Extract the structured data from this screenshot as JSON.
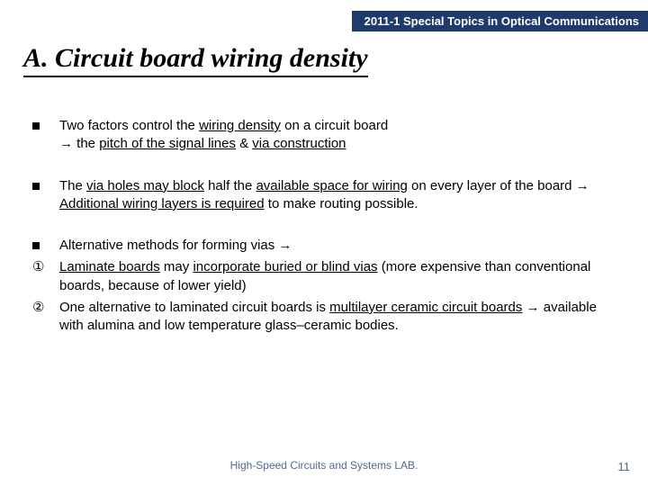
{
  "header": "2011-1 Special Topics in Optical Communications",
  "title": "A. Circuit board wiring density",
  "bullets": {
    "b1a": "Two factors control the ",
    "b1u1": "wiring density",
    "b1b": " on a circuit board",
    "b1c": "→ the ",
    "b1u2": "pitch of the signal lines",
    "b1d": " & ",
    "b1u3": "via construction",
    "b2a": "The ",
    "b2u1": "via holes may block",
    "b2b": " half the ",
    "b2u2": "available space for wiring",
    "b2c": " on every layer of the board → ",
    "b2u3": "Additional wiring layers is required",
    "b2d": " to make routing possible.",
    "b3": "Alternative methods for forming vias →",
    "c1a": "Laminate boards",
    "c1b": " may ",
    "c1c": "incorporate buried or blind vias",
    "c1d": " (more expensive than conventional boards, because of lower yield)",
    "c2a": "One alternative to laminated circuit boards is ",
    "c2b": "multilayer ceramic circuit boards",
    "c2c": " → available with alumina and low temperature glass–ceramic bodies."
  },
  "markers": {
    "circ1": "①",
    "circ2": "②"
  },
  "footer": "High-Speed Circuits and Systems LAB.",
  "page": "11"
}
